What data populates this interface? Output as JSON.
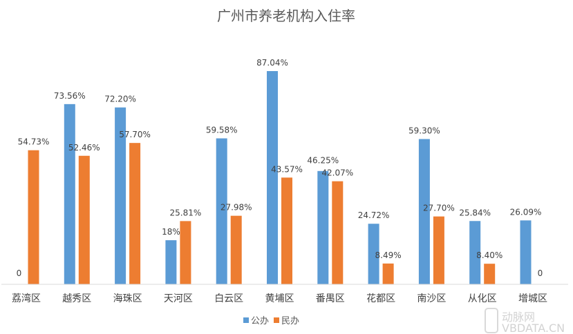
{
  "chart_data": {
    "type": "bar",
    "title": "广州市养老机构入住率",
    "categories": [
      "荔湾区",
      "越秀区",
      "海珠区",
      "天河区",
      "白云区",
      "黄埔区",
      "番禺区",
      "花都区",
      "南沙区",
      "从化区",
      "增城区"
    ],
    "series": [
      {
        "name": "公办",
        "color": "#5b9bd5",
        "values": [
          0,
          73.56,
          72.2,
          18,
          59.58,
          87.04,
          46.25,
          24.72,
          59.3,
          25.84,
          26.09
        ],
        "labels": [
          "0",
          "73.56%",
          "72.20%",
          "18%",
          "59.58%",
          "87.04%",
          "46.25%",
          "24.72%",
          "59.30%",
          "25.84%",
          "26.09%"
        ]
      },
      {
        "name": "民办",
        "color": "#ed7d31",
        "values": [
          54.73,
          52.46,
          57.7,
          25.81,
          27.98,
          43.57,
          42.07,
          8.49,
          27.7,
          8.4,
          0
        ],
        "labels": [
          "54.73%",
          "52.46%",
          "57.70%",
          "25.81%",
          "27.98%",
          "43.57%",
          "42.07%",
          "8.49%",
          "27.70%",
          "8.40%",
          "0"
        ]
      }
    ],
    "ylim": [
      0,
      100
    ],
    "unit": "%",
    "grid": false,
    "legend": "bottom"
  },
  "watermark": {
    "text": "VBDATA.CN",
    "logo": "动脉网"
  }
}
